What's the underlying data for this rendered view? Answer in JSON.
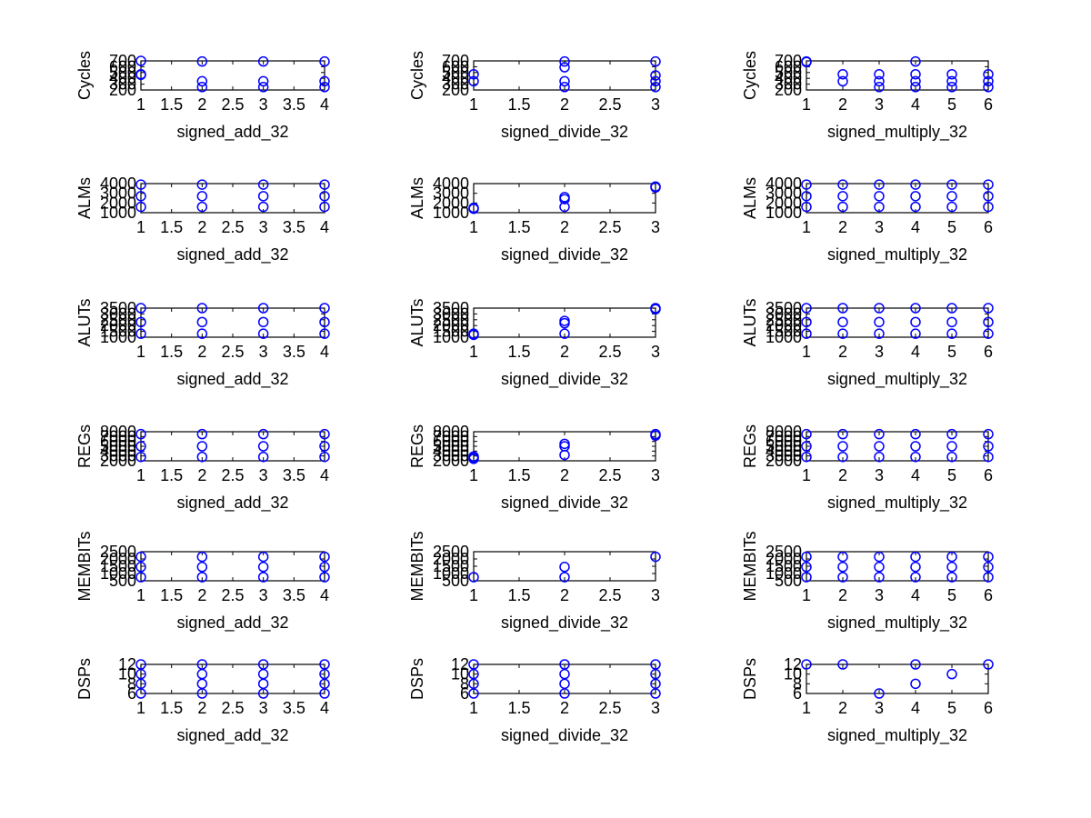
{
  "figure": {
    "background": "#ffffff",
    "marker_color": "#0000ff",
    "axes_color": "#000000",
    "grid": false
  },
  "chart_data": [
    {
      "type": "scatter",
      "row": 0,
      "col": 0,
      "xlabel": "signed_add_32",
      "ylabel": "Cycles",
      "xlim": [
        1,
        4
      ],
      "xticks": [
        "1",
        "1.5",
        "2",
        "2.5",
        "3",
        "3.5",
        "4"
      ],
      "ylim": [
        200,
        700
      ],
      "yticks": [
        "200",
        "300",
        "400",
        "500",
        "600",
        "700"
      ],
      "points": [
        [
          1,
          700
        ],
        [
          1,
          470
        ],
        [
          1,
          460
        ],
        [
          2,
          690
        ],
        [
          2,
          350
        ],
        [
          2,
          250
        ],
        [
          3,
          690
        ],
        [
          3,
          350
        ],
        [
          3,
          250
        ],
        [
          4,
          690
        ],
        [
          4,
          350
        ],
        [
          4,
          250
        ]
      ]
    },
    {
      "type": "scatter",
      "row": 0,
      "col": 1,
      "xlabel": "signed_divide_32",
      "ylabel": "Cycles",
      "xlim": [
        1,
        3
      ],
      "xticks": [
        "1",
        "1.5",
        "2",
        "2.5",
        "3"
      ],
      "ylim": [
        200,
        700
      ],
      "yticks": [
        "200",
        "300",
        "400",
        "500",
        "600",
        "700"
      ],
      "points": [
        [
          1,
          470
        ],
        [
          1,
          350
        ],
        [
          2,
          690
        ],
        [
          2,
          590
        ],
        [
          2,
          350
        ],
        [
          2,
          250
        ],
        [
          3,
          690
        ],
        [
          3,
          450
        ],
        [
          3,
          350
        ],
        [
          3,
          250
        ]
      ]
    },
    {
      "type": "scatter",
      "row": 0,
      "col": 2,
      "xlabel": "signed_multiply_32",
      "ylabel": "Cycles",
      "xlim": [
        1,
        6
      ],
      "xticks": [
        "1",
        "2",
        "3",
        "4",
        "5",
        "6"
      ],
      "ylim": [
        200,
        700
      ],
      "yticks": [
        "200",
        "300",
        "400",
        "500",
        "600",
        "700"
      ],
      "points": [
        [
          1,
          690
        ],
        [
          1,
          680
        ],
        [
          2,
          470
        ],
        [
          2,
          350
        ],
        [
          3,
          470
        ],
        [
          3,
          350
        ],
        [
          3,
          250
        ],
        [
          4,
          690
        ],
        [
          4,
          470
        ],
        [
          4,
          350
        ],
        [
          4,
          250
        ],
        [
          5,
          470
        ],
        [
          5,
          350
        ],
        [
          5,
          250
        ],
        [
          6,
          470
        ],
        [
          6,
          350
        ],
        [
          6,
          250
        ]
      ]
    },
    {
      "type": "scatter",
      "row": 1,
      "col": 0,
      "xlabel": "signed_add_32",
      "ylabel": "ALMs",
      "xlim": [
        1,
        4
      ],
      "xticks": [
        "1",
        "1.5",
        "2",
        "2.5",
        "3",
        "3.5",
        "4"
      ],
      "ylim": [
        1000,
        4000
      ],
      "yticks": [
        "1000",
        "2000",
        "3000",
        "4000"
      ],
      "points": [
        [
          1,
          3900
        ],
        [
          1,
          2700
        ],
        [
          1,
          1600
        ],
        [
          2,
          3900
        ],
        [
          2,
          2700
        ],
        [
          2,
          1600
        ],
        [
          3,
          3900
        ],
        [
          3,
          2700
        ],
        [
          3,
          1600
        ],
        [
          4,
          3900
        ],
        [
          4,
          2700
        ],
        [
          4,
          1600
        ]
      ]
    },
    {
      "type": "scatter",
      "row": 1,
      "col": 1,
      "xlabel": "signed_divide_32",
      "ylabel": "ALMs",
      "xlim": [
        1,
        3
      ],
      "xticks": [
        "1",
        "1.5",
        "2",
        "2.5",
        "3"
      ],
      "ylim": [
        1000,
        4000
      ],
      "yticks": [
        "1000",
        "2000",
        "3000",
        "4000"
      ],
      "points": [
        [
          1,
          1500
        ],
        [
          1,
          1400
        ],
        [
          2,
          2600
        ],
        [
          2,
          2400
        ],
        [
          2,
          1600
        ],
        [
          3,
          3700
        ],
        [
          3,
          3600
        ]
      ]
    },
    {
      "type": "scatter",
      "row": 1,
      "col": 2,
      "xlabel": "signed_multiply_32",
      "ylabel": "ALMs",
      "xlim": [
        1,
        6
      ],
      "xticks": [
        "1",
        "2",
        "3",
        "4",
        "5",
        "6"
      ],
      "ylim": [
        1000,
        4000
      ],
      "yticks": [
        "1000",
        "2000",
        "3000",
        "4000"
      ],
      "points": [
        [
          1,
          3900
        ],
        [
          1,
          2700
        ],
        [
          1,
          1600
        ],
        [
          2,
          3900
        ],
        [
          2,
          2700
        ],
        [
          2,
          1600
        ],
        [
          3,
          3900
        ],
        [
          3,
          2700
        ],
        [
          3,
          1600
        ],
        [
          4,
          3900
        ],
        [
          4,
          2700
        ],
        [
          4,
          1600
        ],
        [
          5,
          3900
        ],
        [
          5,
          2700
        ],
        [
          5,
          1600
        ],
        [
          6,
          3900
        ],
        [
          6,
          2700
        ],
        [
          6,
          1600
        ]
      ]
    },
    {
      "type": "scatter",
      "row": 2,
      "col": 0,
      "xlabel": "signed_add_32",
      "ylabel": "ALUTs",
      "xlim": [
        1,
        4
      ],
      "xticks": [
        "1",
        "1.5",
        "2",
        "2.5",
        "3",
        "3.5",
        "4"
      ],
      "ylim": [
        1000,
        3500
      ],
      "yticks": [
        "1000",
        "1500",
        "2000",
        "2500",
        "3000",
        "3500"
      ],
      "points": [
        [
          1,
          3500
        ],
        [
          1,
          2300
        ],
        [
          1,
          1300
        ],
        [
          2,
          3500
        ],
        [
          2,
          2300
        ],
        [
          2,
          1300
        ],
        [
          3,
          3500
        ],
        [
          3,
          2300
        ],
        [
          3,
          1300
        ],
        [
          4,
          3500
        ],
        [
          4,
          2300
        ],
        [
          4,
          1300
        ]
      ]
    },
    {
      "type": "scatter",
      "row": 2,
      "col": 1,
      "xlabel": "signed_divide_32",
      "ylabel": "ALUTs",
      "xlim": [
        1,
        3
      ],
      "xticks": [
        "1",
        "1.5",
        "2",
        "2.5",
        "3"
      ],
      "ylim": [
        1000,
        3500
      ],
      "yticks": [
        "1000",
        "1500",
        "2000",
        "2500",
        "3000",
        "3500"
      ],
      "points": [
        [
          1,
          1300
        ],
        [
          1,
          1200
        ],
        [
          2,
          2400
        ],
        [
          2,
          2200
        ],
        [
          2,
          1300
        ],
        [
          3,
          3500
        ],
        [
          3,
          3400
        ]
      ]
    },
    {
      "type": "scatter",
      "row": 2,
      "col": 2,
      "xlabel": "signed_multiply_32",
      "ylabel": "ALUTs",
      "xlim": [
        1,
        6
      ],
      "xticks": [
        "1",
        "2",
        "3",
        "4",
        "5",
        "6"
      ],
      "ylim": [
        1000,
        3500
      ],
      "yticks": [
        "1000",
        "1500",
        "2000",
        "2500",
        "3000",
        "3500"
      ],
      "points": [
        [
          1,
          3500
        ],
        [
          1,
          2300
        ],
        [
          1,
          1300
        ],
        [
          2,
          3500
        ],
        [
          2,
          2300
        ],
        [
          2,
          1300
        ],
        [
          3,
          3500
        ],
        [
          3,
          2300
        ],
        [
          3,
          1300
        ],
        [
          4,
          3500
        ],
        [
          4,
          2300
        ],
        [
          4,
          1300
        ],
        [
          5,
          3500
        ],
        [
          5,
          2300
        ],
        [
          5,
          1300
        ],
        [
          6,
          3500
        ],
        [
          6,
          2300
        ],
        [
          6,
          1300
        ]
      ]
    },
    {
      "type": "scatter",
      "row": 3,
      "col": 0,
      "xlabel": "signed_add_32",
      "ylabel": "REGs",
      "xlim": [
        1,
        4
      ],
      "xticks": [
        "1",
        "1.5",
        "2",
        "2.5",
        "3",
        "3.5",
        "4"
      ],
      "ylim": [
        2000,
        8000
      ],
      "yticks": [
        "2000",
        "3000",
        "4000",
        "5000",
        "6000",
        "7000",
        "8000"
      ],
      "points": [
        [
          1,
          7500
        ],
        [
          1,
          5000
        ],
        [
          1,
          2800
        ],
        [
          2,
          7500
        ],
        [
          2,
          5000
        ],
        [
          2,
          2800
        ],
        [
          3,
          7500
        ],
        [
          3,
          5000
        ],
        [
          3,
          2800
        ],
        [
          4,
          7500
        ],
        [
          4,
          5000
        ],
        [
          4,
          2800
        ]
      ]
    },
    {
      "type": "scatter",
      "row": 3,
      "col": 1,
      "xlabel": "signed_divide_32",
      "ylabel": "REGs",
      "xlim": [
        1,
        3
      ],
      "xticks": [
        "1",
        "1.5",
        "2",
        "2.5",
        "3"
      ],
      "ylim": [
        2000,
        8000
      ],
      "yticks": [
        "2000",
        "3000",
        "4000",
        "5000",
        "6000",
        "7000",
        "8000"
      ],
      "points": [
        [
          1,
          2900
        ],
        [
          1,
          2600
        ],
        [
          1,
          2400
        ],
        [
          2,
          5500
        ],
        [
          2,
          5000
        ],
        [
          2,
          3200
        ],
        [
          3,
          7500
        ],
        [
          3,
          7200
        ]
      ]
    },
    {
      "type": "scatter",
      "row": 3,
      "col": 2,
      "xlabel": "signed_multiply_32",
      "ylabel": "REGs",
      "xlim": [
        1,
        6
      ],
      "xticks": [
        "1",
        "2",
        "3",
        "4",
        "5",
        "6"
      ],
      "ylim": [
        2000,
        8000
      ],
      "yticks": [
        "2000",
        "3000",
        "4000",
        "5000",
        "6000",
        "7000",
        "8000"
      ],
      "points": [
        [
          1,
          7500
        ],
        [
          1,
          5000
        ],
        [
          1,
          2800
        ],
        [
          2,
          7500
        ],
        [
          2,
          5000
        ],
        [
          2,
          2800
        ],
        [
          3,
          7500
        ],
        [
          3,
          5000
        ],
        [
          3,
          2800
        ],
        [
          4,
          7500
        ],
        [
          4,
          5000
        ],
        [
          4,
          2800
        ],
        [
          5,
          7500
        ],
        [
          5,
          5000
        ],
        [
          5,
          2800
        ],
        [
          6,
          7500
        ],
        [
          6,
          5000
        ],
        [
          6,
          2800
        ]
      ]
    },
    {
      "type": "scatter",
      "row": 4,
      "col": 0,
      "xlabel": "signed_add_32",
      "ylabel": "MEMBITs",
      "xlim": [
        1,
        4
      ],
      "xticks": [
        "1",
        "1.5",
        "2",
        "2.5",
        "3",
        "3.5",
        "4"
      ],
      "ylim": [
        500,
        2500
      ],
      "yticks": [
        "500",
        "1000",
        "1500",
        "2000",
        "2500"
      ],
      "points": [
        [
          1,
          2150
        ],
        [
          1,
          1450
        ],
        [
          1,
          750
        ],
        [
          2,
          2150
        ],
        [
          2,
          1450
        ],
        [
          2,
          750
        ],
        [
          3,
          2150
        ],
        [
          3,
          1450
        ],
        [
          3,
          750
        ],
        [
          4,
          2150
        ],
        [
          4,
          1450
        ],
        [
          4,
          750
        ]
      ]
    },
    {
      "type": "scatter",
      "row": 4,
      "col": 1,
      "xlabel": "signed_divide_32",
      "ylabel": "MEMBITs",
      "xlim": [
        1,
        3
      ],
      "xticks": [
        "1",
        "1.5",
        "2",
        "2.5",
        "3"
      ],
      "ylim": [
        500,
        2500
      ],
      "yticks": [
        "500",
        "1000",
        "1500",
        "2000",
        "2500"
      ],
      "points": [
        [
          1,
          750
        ],
        [
          2,
          1450
        ],
        [
          2,
          750
        ],
        [
          3,
          2150
        ]
      ]
    },
    {
      "type": "scatter",
      "row": 4,
      "col": 2,
      "xlabel": "signed_multiply_32",
      "ylabel": "MEMBITs",
      "xlim": [
        1,
        6
      ],
      "xticks": [
        "1",
        "2",
        "3",
        "4",
        "5",
        "6"
      ],
      "ylim": [
        500,
        2500
      ],
      "yticks": [
        "500",
        "1000",
        "1500",
        "2000",
        "2500"
      ],
      "points": [
        [
          1,
          2150
        ],
        [
          1,
          1450
        ],
        [
          1,
          750
        ],
        [
          2,
          2150
        ],
        [
          2,
          1450
        ],
        [
          2,
          750
        ],
        [
          3,
          2150
        ],
        [
          3,
          1450
        ],
        [
          3,
          750
        ],
        [
          4,
          2150
        ],
        [
          4,
          1450
        ],
        [
          4,
          750
        ],
        [
          5,
          2150
        ],
        [
          5,
          1450
        ],
        [
          5,
          750
        ],
        [
          6,
          2150
        ],
        [
          6,
          1450
        ],
        [
          6,
          750
        ]
      ]
    },
    {
      "type": "scatter",
      "row": 5,
      "col": 0,
      "xlabel": "signed_add_32",
      "ylabel": "DSPs",
      "xlim": [
        1,
        4
      ],
      "xticks": [
        "1",
        "1.5",
        "2",
        "2.5",
        "3",
        "3.5",
        "4"
      ],
      "ylim": [
        6,
        12
      ],
      "yticks": [
        "6",
        "8",
        "10",
        "12"
      ],
      "points": [
        [
          1,
          12
        ],
        [
          1,
          10
        ],
        [
          1,
          8
        ],
        [
          1,
          6
        ],
        [
          2,
          12
        ],
        [
          2,
          10
        ],
        [
          2,
          8
        ],
        [
          2,
          6
        ],
        [
          3,
          12
        ],
        [
          3,
          10
        ],
        [
          3,
          8
        ],
        [
          3,
          6
        ],
        [
          4,
          12
        ],
        [
          4,
          10
        ],
        [
          4,
          8
        ],
        [
          4,
          6
        ]
      ]
    },
    {
      "type": "scatter",
      "row": 5,
      "col": 1,
      "xlabel": "signed_divide_32",
      "ylabel": "DSPs",
      "xlim": [
        1,
        3
      ],
      "xticks": [
        "1",
        "1.5",
        "2",
        "2.5",
        "3"
      ],
      "ylim": [
        6,
        12
      ],
      "yticks": [
        "6",
        "8",
        "10",
        "12"
      ],
      "points": [
        [
          1,
          12
        ],
        [
          1,
          10
        ],
        [
          1,
          8
        ],
        [
          1,
          6
        ],
        [
          2,
          12
        ],
        [
          2,
          10
        ],
        [
          2,
          8
        ],
        [
          2,
          6
        ],
        [
          3,
          12
        ],
        [
          3,
          10
        ],
        [
          3,
          8
        ],
        [
          3,
          6
        ]
      ]
    },
    {
      "type": "scatter",
      "row": 5,
      "col": 2,
      "xlabel": "signed_multiply_32",
      "ylabel": "DSPs",
      "xlim": [
        1,
        6
      ],
      "xticks": [
        "1",
        "2",
        "3",
        "4",
        "5",
        "6"
      ],
      "ylim": [
        6,
        12
      ],
      "yticks": [
        "6",
        "8",
        "10",
        "12"
      ],
      "points": [
        [
          1,
          12
        ],
        [
          2,
          12
        ],
        [
          3,
          6
        ],
        [
          4,
          12
        ],
        [
          4,
          8
        ],
        [
          5,
          10
        ],
        [
          6,
          12
        ]
      ]
    }
  ]
}
